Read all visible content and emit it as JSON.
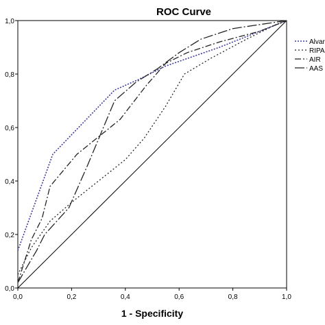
{
  "chart_data": {
    "type": "line",
    "title": "ROC Curve",
    "xlabel": "1 - Specificity",
    "ylabel": "",
    "xlim": [
      0,
      1
    ],
    "ylim": [
      0,
      1
    ],
    "x_ticks": [
      "0,0",
      "0,2",
      "0,4",
      "0,6",
      "0,8",
      "1,0"
    ],
    "y_ticks": [
      "0,0",
      "0,2",
      "0,4",
      "0,6",
      "0,8",
      "1,0"
    ],
    "grid": false,
    "legend_position": "right",
    "series": [
      {
        "name": "Alvarado",
        "label_visible": "Alvar",
        "color": "#3a3a9a",
        "dash": "dotted",
        "x": [
          0.0,
          0.13,
          0.36,
          0.45,
          0.55,
          0.75,
          0.95,
          1.0
        ],
        "y": [
          0.14,
          0.5,
          0.74,
          0.78,
          0.83,
          0.9,
          0.98,
          1.0
        ]
      },
      {
        "name": "RIPASA",
        "label_visible": "RIPA",
        "color": "#222222",
        "dash": "dotted-black",
        "x": [
          0.0,
          0.05,
          0.12,
          0.2,
          0.3,
          0.4,
          0.47,
          0.55,
          0.62,
          0.72,
          0.85,
          0.95,
          1.0
        ],
        "y": [
          0.05,
          0.15,
          0.25,
          0.32,
          0.4,
          0.48,
          0.56,
          0.68,
          0.8,
          0.86,
          0.93,
          0.98,
          1.0
        ]
      },
      {
        "name": "AIR",
        "label_visible": "AIR",
        "color": "#222222",
        "dash": "dash-dot",
        "x": [
          0.0,
          0.05,
          0.09,
          0.12,
          0.22,
          0.38,
          0.48,
          0.55,
          0.63,
          0.75,
          0.9,
          1.0
        ],
        "y": [
          0.02,
          0.18,
          0.26,
          0.38,
          0.5,
          0.63,
          0.76,
          0.84,
          0.88,
          0.92,
          0.96,
          1.0
        ]
      },
      {
        "name": "AAS",
        "label_visible": "AAS",
        "color": "#222222",
        "dash": "long-dash-dot",
        "x": [
          0.0,
          0.07,
          0.1,
          0.19,
          0.26,
          0.36,
          0.44,
          0.52,
          0.6,
          0.68,
          0.8,
          1.0
        ],
        "y": [
          0.02,
          0.14,
          0.2,
          0.3,
          0.46,
          0.7,
          0.77,
          0.82,
          0.88,
          0.93,
          0.97,
          1.0
        ]
      }
    ]
  }
}
